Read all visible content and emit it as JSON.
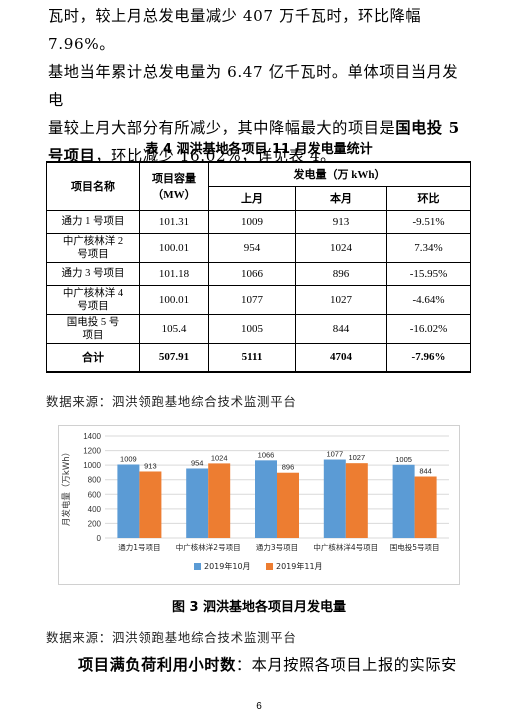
{
  "para1": {
    "line1": "瓦时，较上月总发电量减少 407 万千瓦时，环比降幅 7.96%。",
    "line2": "基地当年累计总发电量为 6.47 亿千瓦时。单体项目当月发电",
    "line3_pre": "量较上月大部分有所减少，其中降幅最大的项目是",
    "line3_bold": "国电投 5",
    "line4_bold": "号项目",
    "line4_post": "，环比减少 16.02%，详见表 4。"
  },
  "table_caption": "表 4   泗洪基地各项目 11 月发电量统计",
  "table": {
    "header_name": "项目名称",
    "header_capacity": "项目容量（MW）",
    "header_gen": "发电量（万 kWh）",
    "header_last": "上月",
    "header_this": "本月",
    "header_mom": "环比",
    "rows": [
      {
        "name": "通力 1 号项目",
        "capacity": "101.31",
        "last": "1009",
        "this": "913",
        "mom": "-9.51%"
      },
      {
        "name": "中广核林洋 2 号项目",
        "capacity": "100.01",
        "last": "954",
        "this": "1024",
        "mom": "7.34%"
      },
      {
        "name": "通力 3 号项目",
        "capacity": "101.18",
        "last": "1066",
        "this": "896",
        "mom": "-15.95%"
      },
      {
        "name": "中广核林洋 4 号项目",
        "capacity": "100.01",
        "last": "1077",
        "this": "1027",
        "mom": "-4.64%"
      },
      {
        "name": "国电投 5 号项目",
        "capacity": "105.4",
        "last": "1005",
        "this": "844",
        "mom": "-16.02%"
      }
    ],
    "total": {
      "name": "合计",
      "capacity": "507.91",
      "last": "5111",
      "this": "4704",
      "mom": "-7.96%"
    }
  },
  "source1": "数据来源：泗洪领跑基地综合技术监测平台",
  "chart_data": {
    "type": "bar",
    "categories": [
      "通力1号项目",
      "中广核林洋2号项目",
      "通力3号项目",
      "中广核林洋4号项目",
      "国电投5号项目"
    ],
    "series": [
      {
        "name": "2019年10月",
        "values": [
          1009,
          954,
          1066,
          1077,
          1005
        ],
        "color": "#5b9bd5"
      },
      {
        "name": "2019年11月",
        "values": [
          913,
          1024,
          896,
          1027,
          844
        ],
        "color": "#ed7d31"
      }
    ],
    "ylabel": "月发电量（万kWh）",
    "ylim": [
      0,
      1400
    ],
    "yticks": [
      0,
      200,
      400,
      600,
      800,
      1000,
      1200,
      1400
    ],
    "grid": true,
    "legend": "bottom"
  },
  "figure_caption": "图 3   泗洪基地各项目月发电量",
  "source2": "数据来源：泗洪领跑基地综合技术监测平台",
  "para2": {
    "bold": "项目满负荷利用小时数",
    "rest": "：本月按照各项目上报的实际安"
  },
  "page_number": "6"
}
